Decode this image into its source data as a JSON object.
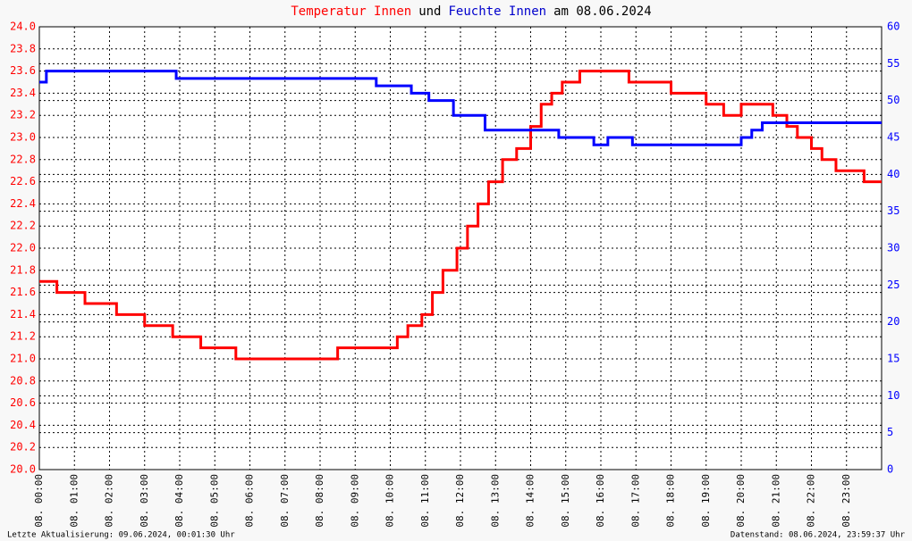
{
  "chart_data": {
    "type": "line",
    "title": {
      "parts": [
        {
          "text": "Temperatur Innen",
          "color": "#ff0000"
        },
        {
          "text": "und",
          "color": "#000000"
        },
        {
          "text": "Feuchte Innen",
          "color": "#0000cc"
        },
        {
          "text": "am 08.06.2024",
          "color": "#000000"
        }
      ]
    },
    "xlim": [
      0,
      24
    ],
    "xticks": [
      {
        "value": 0,
        "label": "08. 00:00"
      },
      {
        "value": 1,
        "label": "08. 01:00"
      },
      {
        "value": 2,
        "label": "08. 02:00"
      },
      {
        "value": 3,
        "label": "08. 03:00"
      },
      {
        "value": 4,
        "label": "08. 04:00"
      },
      {
        "value": 5,
        "label": "08. 05:00"
      },
      {
        "value": 6,
        "label": "08. 06:00"
      },
      {
        "value": 7,
        "label": "08. 07:00"
      },
      {
        "value": 8,
        "label": "08. 08:00"
      },
      {
        "value": 9,
        "label": "08. 09:00"
      },
      {
        "value": 10,
        "label": "08. 10:00"
      },
      {
        "value": 11,
        "label": "08. 11:00"
      },
      {
        "value": 12,
        "label": "08. 12:00"
      },
      {
        "value": 13,
        "label": "08. 13:00"
      },
      {
        "value": 14,
        "label": "08. 14:00"
      },
      {
        "value": 15,
        "label": "08. 15:00"
      },
      {
        "value": 16,
        "label": "08. 16:00"
      },
      {
        "value": 17,
        "label": "08. 17:00"
      },
      {
        "value": 18,
        "label": "08. 18:00"
      },
      {
        "value": 19,
        "label": "08. 19:00"
      },
      {
        "value": 20,
        "label": "08. 20:00"
      },
      {
        "value": 21,
        "label": "08. 21:00"
      },
      {
        "value": 22,
        "label": "08. 22:00"
      },
      {
        "value": 23,
        "label": "08. 23:00"
      }
    ],
    "ylim": [
      20,
      24
    ],
    "yticks": [
      {
        "value": 20,
        "label": "20.0"
      },
      {
        "value": 20.2,
        "label": "20.2"
      },
      {
        "value": 20.4,
        "label": "20.4"
      },
      {
        "value": 20.6,
        "label": "20.6"
      },
      {
        "value": 20.8,
        "label": "20.8"
      },
      {
        "value": 21,
        "label": "21.0"
      },
      {
        "value": 21.2,
        "label": "21.2"
      },
      {
        "value": 21.4,
        "label": "21.4"
      },
      {
        "value": 21.6,
        "label": "21.6"
      },
      {
        "value": 21.8,
        "label": "21.8"
      },
      {
        "value": 22,
        "label": "22.0"
      },
      {
        "value": 22.2,
        "label": "22.2"
      },
      {
        "value": 22.4,
        "label": "22.4"
      },
      {
        "value": 22.6,
        "label": "22.6"
      },
      {
        "value": 22.8,
        "label": "22.8"
      },
      {
        "value": 23,
        "label": "23.0"
      },
      {
        "value": 23.2,
        "label": "23.2"
      },
      {
        "value": 23.4,
        "label": "23.4"
      },
      {
        "value": 23.6,
        "label": "23.6"
      },
      {
        "value": 23.8,
        "label": "23.8"
      },
      {
        "value": 24,
        "label": "24.0"
      }
    ],
    "y2lim": [
      0,
      60
    ],
    "y2ticks": [
      0,
      5,
      10,
      15,
      20,
      25,
      30,
      35,
      40,
      45,
      50,
      55,
      60
    ],
    "ycolor": "#ff0000",
    "y2color": "#0000ff",
    "grid": true,
    "series": [
      {
        "name": "Temperatur Innen",
        "color": "#ff0000",
        "axis": "y",
        "x": [
          0,
          0.5,
          1.3,
          2.2,
          3.0,
          3.8,
          4.6,
          5.6,
          8.5,
          10.2,
          10.5,
          10.9,
          11.2,
          11.5,
          11.9,
          12.2,
          12.5,
          12.8,
          13.2,
          13.6,
          14.0,
          14.3,
          14.6,
          14.9,
          15.4,
          16.8,
          18.0,
          19.0,
          19.5,
          20.0,
          20.9,
          21.3,
          21.6,
          22.0,
          22.3,
          22.7,
          23.5,
          24
        ],
        "values": [
          21.7,
          21.6,
          21.5,
          21.4,
          21.3,
          21.2,
          21.1,
          21.0,
          21.1,
          21.2,
          21.3,
          21.4,
          21.6,
          21.8,
          22.0,
          22.2,
          22.4,
          22.6,
          22.8,
          22.9,
          23.1,
          23.3,
          23.4,
          23.5,
          23.6,
          23.5,
          23.4,
          23.3,
          23.2,
          23.3,
          23.2,
          23.1,
          23.0,
          22.9,
          22.8,
          22.7,
          22.6,
          22.6
        ]
      },
      {
        "name": "Feuchte Innen",
        "color": "#0000ff",
        "axis": "y2",
        "x": [
          0,
          0.2,
          3.9,
          9.6,
          10.6,
          11.1,
          11.8,
          12.7,
          14.8,
          15.8,
          16.2,
          16.9,
          19.8,
          20.0,
          20.3,
          20.6,
          24
        ],
        "values": [
          52.5,
          54,
          53,
          52,
          51,
          50,
          48,
          46,
          45,
          44,
          45,
          44,
          44,
          45,
          46,
          47,
          47
        ]
      }
    ],
    "footer_left": "Letzte Aktualisierung: 09.06.2024, 00:01:30 Uhr",
    "footer_right": "Datenstand: 08.06.2024, 23:59:37 Uhr"
  }
}
